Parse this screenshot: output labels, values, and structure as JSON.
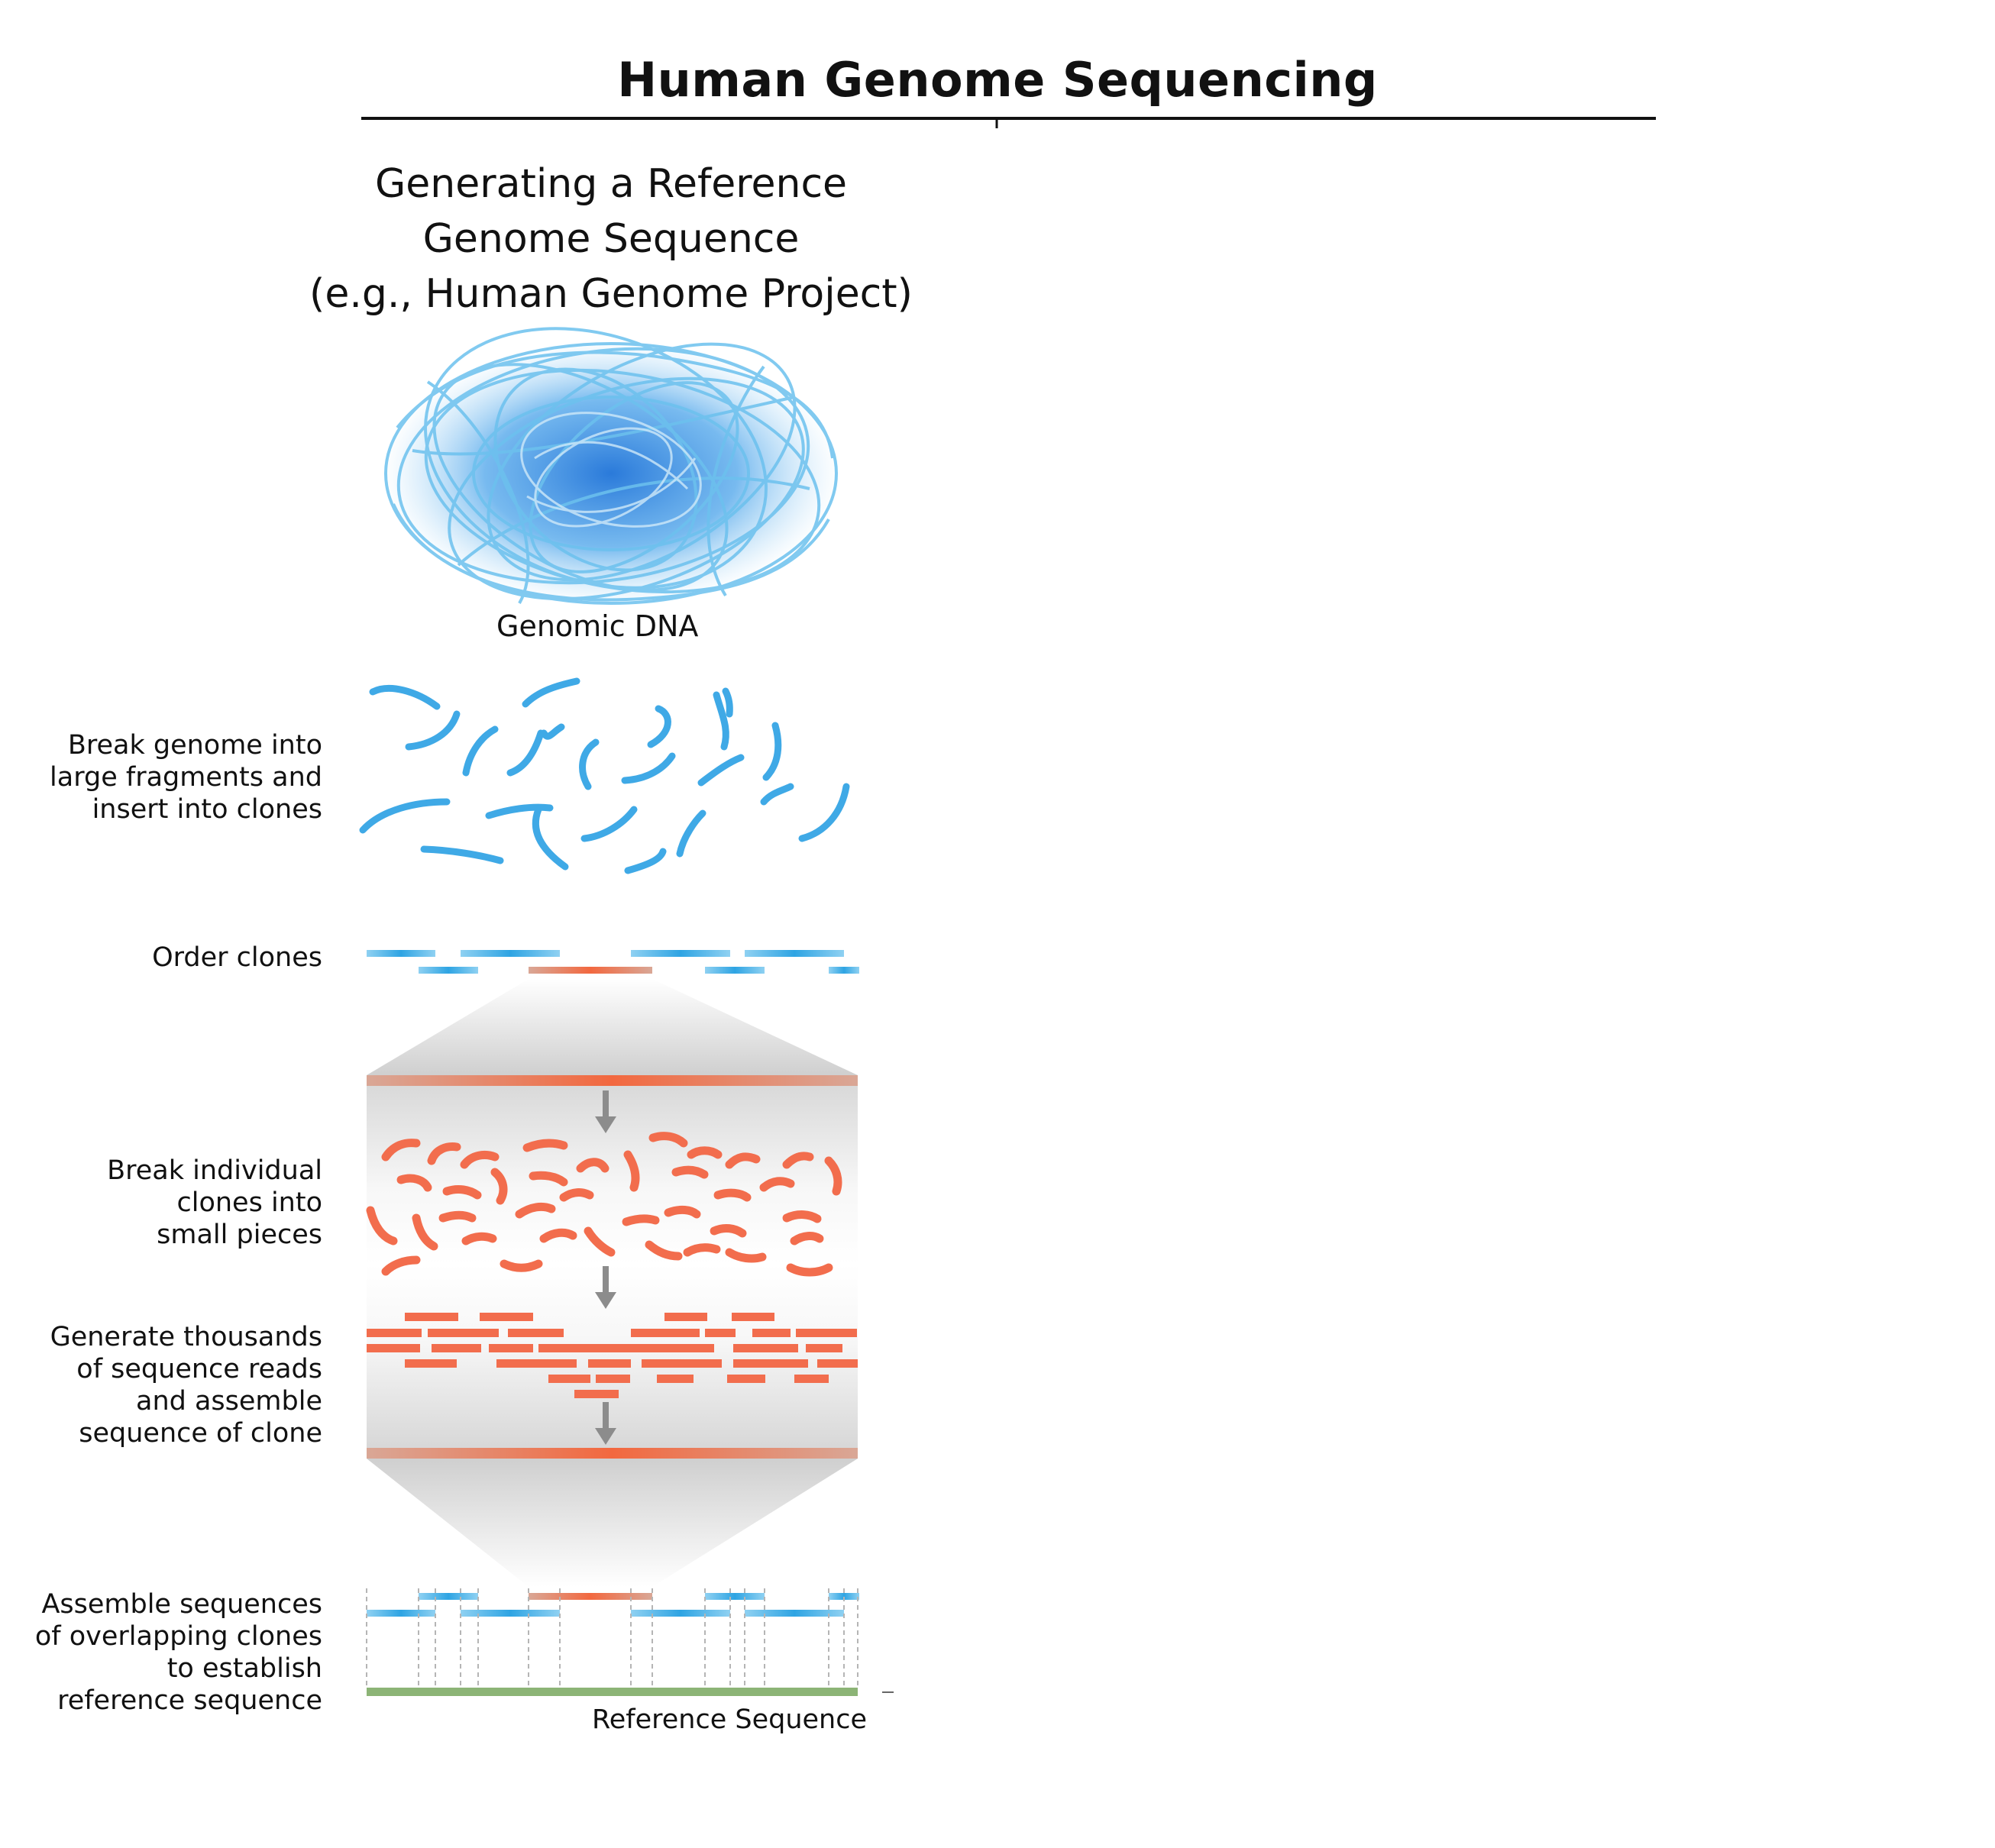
{
  "title": "Human Genome Sequencing",
  "subtitle": [
    "Generating a Reference",
    "Genome Sequence",
    "(e.g., Human Genome Project)"
  ],
  "dna_label": "Genomic DNA",
  "steps": [
    {
      "key": "break",
      "lines": [
        "Break genome into",
        "large fragments and",
        "insert into clones"
      ]
    },
    {
      "key": "order",
      "lines": [
        "Order clones"
      ]
    },
    {
      "key": "pieces",
      "lines": [
        "Break individual",
        "clones into",
        "small pieces"
      ]
    },
    {
      "key": "reads",
      "lines": [
        "Generate thousands",
        "of sequence reads",
        "and assemble",
        "sequence of clone"
      ]
    },
    {
      "key": "assemble",
      "lines": [
        "Assemble sequences",
        "of overlapping clones",
        "to establish",
        "reference sequence"
      ]
    }
  ],
  "reference_label": "Reference Sequence",
  "colors": {
    "dna_blue": "#3fa9e6",
    "clone_orange": "#f26d4d",
    "clone_salmon": "#d99a86",
    "reference_green": "#8cb476",
    "arrow_gray": "#8c8c8c",
    "band_gray": "#e6e6e6"
  }
}
